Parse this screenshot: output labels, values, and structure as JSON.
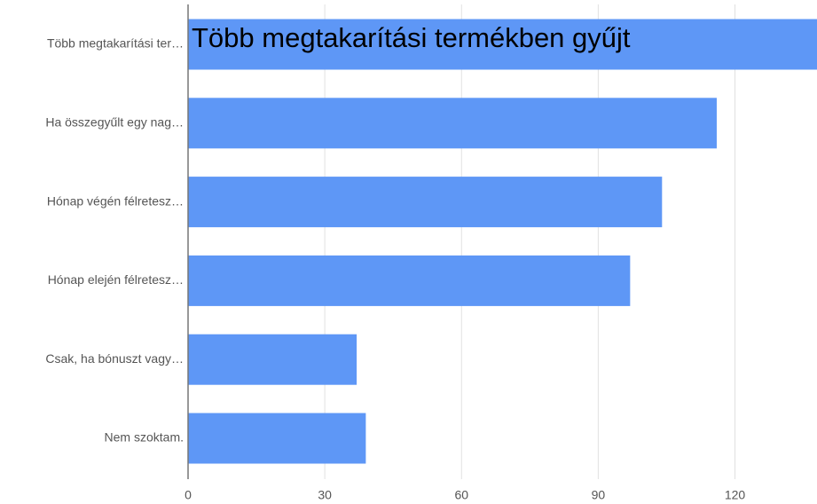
{
  "chart_data": {
    "type": "bar",
    "orientation": "horizontal",
    "annotation": "Több megtakarítási termékben gyűjt",
    "categories": [
      "Több megtakarítási ter…",
      "Ha összegyűlt egy nag…",
      "Hónap végén félretesz…",
      "Hónap elején félretesz…",
      "Csak, ha bónuszt vagy…",
      "Nem szoktam."
    ],
    "values": [
      138,
      116,
      104,
      97,
      37,
      39
    ],
    "color": "#5e97f6",
    "xlim": [
      0,
      138
    ],
    "xticks": [
      0,
      30,
      60,
      90,
      120
    ],
    "grid": true
  }
}
